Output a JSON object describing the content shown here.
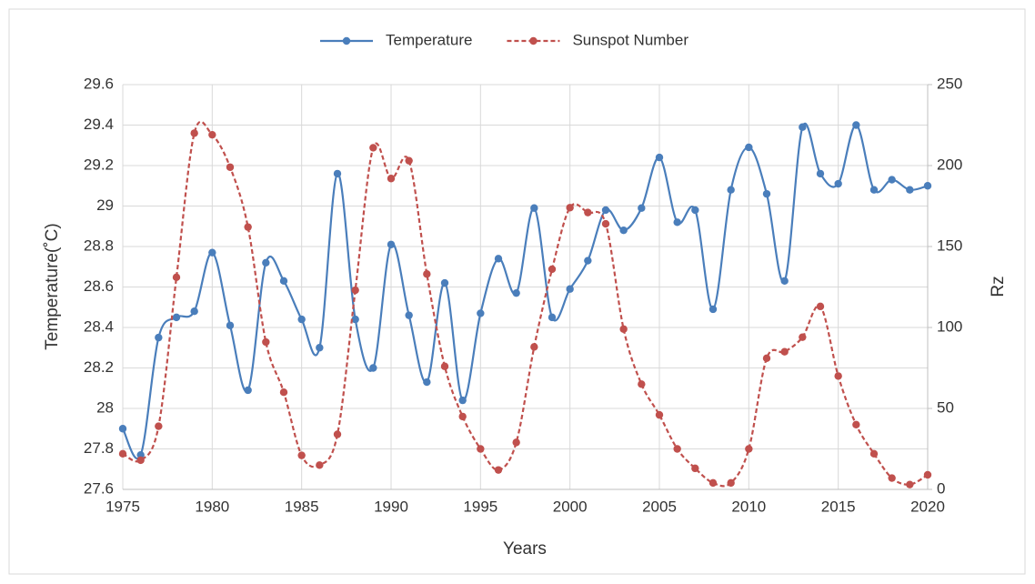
{
  "chart_data": {
    "type": "line",
    "x_label": "Years",
    "y_label": "Temperature(˚C)",
    "y2_label": "Rz",
    "x": [
      1975,
      1976,
      1977,
      1978,
      1979,
      1980,
      1981,
      1982,
      1983,
      1984,
      1985,
      1986,
      1987,
      1988,
      1989,
      1990,
      1991,
      1992,
      1993,
      1994,
      1995,
      1996,
      1997,
      1998,
      1999,
      2000,
      2001,
      2002,
      2003,
      2004,
      2005,
      2006,
      2007,
      2008,
      2009,
      2010,
      2011,
      2012,
      2013,
      2014,
      2015,
      2016,
      2017,
      2018,
      2019,
      2020
    ],
    "series": [
      {
        "name": "Temperature",
        "color": "#4a7ebb",
        "style": "solid",
        "values": [
          27.9,
          27.77,
          28.35,
          28.45,
          28.48,
          28.77,
          28.41,
          28.09,
          28.72,
          28.63,
          28.44,
          28.3,
          29.16,
          28.44,
          28.2,
          28.81,
          28.46,
          28.13,
          28.62,
          28.04,
          28.47,
          28.74,
          28.57,
          28.99,
          28.45,
          28.59,
          28.73,
          28.98,
          28.88,
          28.99,
          29.24,
          28.92,
          28.98,
          28.49,
          29.08,
          29.29,
          29.06,
          28.63,
          29.39,
          29.16,
          29.11,
          29.4,
          29.08,
          29.13,
          29.08,
          29.1
        ]
      },
      {
        "name": "Sunspot Number",
        "color": "#c0504d",
        "style": "dashed",
        "axis": "y2",
        "values": [
          22,
          18,
          39,
          131,
          220,
          219,
          199,
          162,
          91,
          60,
          21,
          15,
          34,
          123,
          211,
          192,
          203,
          133,
          76,
          45,
          25,
          12,
          29,
          88,
          136,
          174,
          171,
          164,
          99,
          65,
          46,
          25,
          13,
          4,
          4,
          25,
          81,
          85,
          94,
          113,
          70,
          40,
          22,
          7,
          3,
          9
        ]
      }
    ],
    "xlim": [
      1975,
      2020
    ],
    "xticks": [
      1975,
      1980,
      1985,
      1990,
      1995,
      2000,
      2005,
      2010,
      2015,
      2020
    ],
    "ylim": [
      27.6,
      29.6
    ],
    "yticks": [
      27.6,
      27.8,
      28,
      28.2,
      28.4,
      28.6,
      28.8,
      29,
      29.2,
      29.4,
      29.6
    ],
    "y2lim": [
      0,
      250
    ],
    "y2ticks": [
      0,
      50,
      100,
      150,
      200,
      250
    ],
    "grid": true,
    "smooth": true,
    "legend": "top"
  }
}
